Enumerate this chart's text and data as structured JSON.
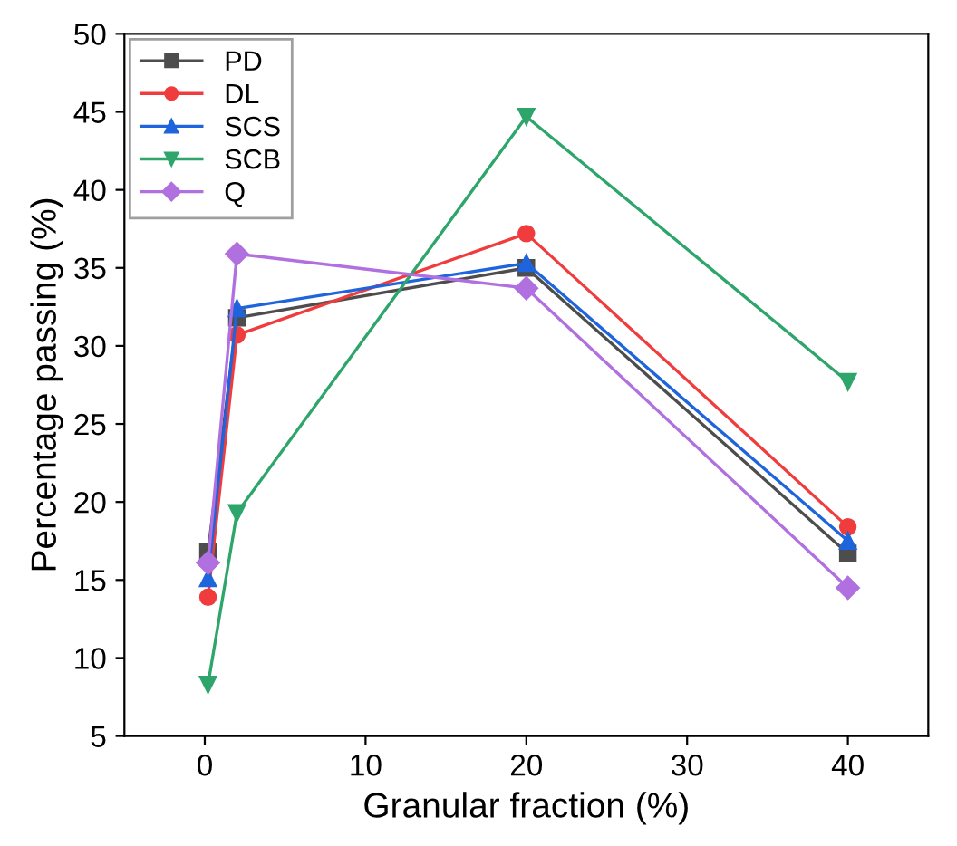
{
  "chart_data": {
    "type": "line",
    "xlabel": "Granular fraction (%)",
    "ylabel": "Percentage passing (%)",
    "x": [
      0.2,
      2,
      20,
      40
    ],
    "xlim": [
      -5,
      45
    ],
    "xticks": [
      0,
      10,
      20,
      30,
      40
    ],
    "ylim": [
      5,
      50
    ],
    "yticks": [
      5,
      10,
      15,
      20,
      25,
      30,
      35,
      40,
      45,
      50
    ],
    "grid": false,
    "legend": "top left",
    "series": [
      {
        "name": "PD",
        "color": "#4d4d4d",
        "marker": "square",
        "values": [
          16.8,
          31.8,
          35.0,
          16.7
        ]
      },
      {
        "name": "DL",
        "color": "#f03c3c",
        "marker": "circle",
        "values": [
          13.9,
          30.7,
          37.2,
          18.4
        ]
      },
      {
        "name": "SCS",
        "color": "#1e64dc",
        "marker": "triangle",
        "values": [
          15.1,
          32.4,
          35.3,
          17.5
        ]
      },
      {
        "name": "SCB",
        "color": "#2ea56a",
        "marker": "triangle_down",
        "values": [
          8.3,
          19.3,
          44.7,
          27.7
        ]
      },
      {
        "name": "Q",
        "color": "#b070e0",
        "marker": "diamond",
        "values": [
          16.1,
          35.9,
          33.7,
          14.5
        ]
      }
    ]
  }
}
